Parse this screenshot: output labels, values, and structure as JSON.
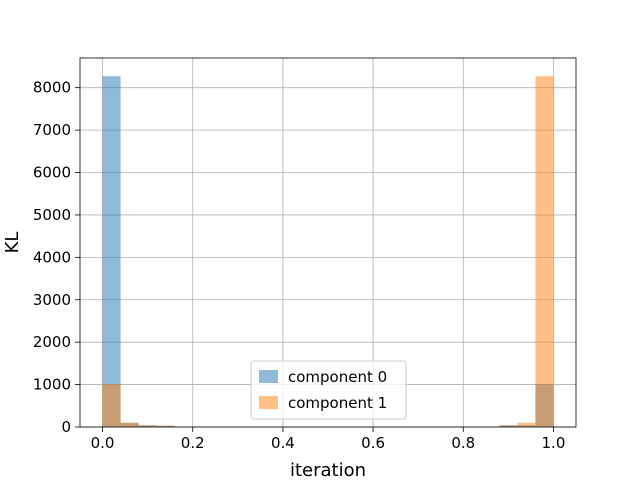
{
  "chart_data": {
    "type": "bar",
    "title": "",
    "xlabel": "iteration",
    "ylabel": "KL",
    "xlim": [
      -0.05,
      1.05
    ],
    "ylim": [
      0,
      8700
    ],
    "x_ticks": [
      0.0,
      0.2,
      0.4,
      0.6,
      0.8,
      1.0
    ],
    "x_tick_labels": [
      "0.0",
      "0.2",
      "0.4",
      "0.6",
      "0.8",
      "1.0"
    ],
    "y_ticks": [
      0,
      1000,
      2000,
      3000,
      4000,
      5000,
      6000,
      7000,
      8000
    ],
    "y_tick_labels": [
      "0",
      "1000",
      "2000",
      "3000",
      "4000",
      "5000",
      "6000",
      "7000",
      "8000"
    ],
    "grid": true,
    "legend_position": "bottom-center",
    "bin_edges": [
      0.0,
      0.04,
      0.08,
      0.12,
      0.16,
      0.2,
      0.24,
      0.28,
      0.32,
      0.36,
      0.4,
      0.44,
      0.48,
      0.52,
      0.56,
      0.6,
      0.64,
      0.68,
      0.72,
      0.76,
      0.8,
      0.84,
      0.88,
      0.92,
      0.96,
      1.0
    ],
    "series": [
      {
        "name": "component 0",
        "color": "#1f77b4",
        "values": [
          8270,
          100,
          40,
          30,
          10,
          10,
          10,
          10,
          10,
          10,
          10,
          10,
          10,
          10,
          10,
          10,
          10,
          10,
          10,
          10,
          10,
          10,
          40,
          40,
          1010
        ]
      },
      {
        "name": "component 1",
        "color": "#ff7f0e",
        "values": [
          1010,
          100,
          40,
          30,
          10,
          10,
          10,
          10,
          10,
          10,
          10,
          10,
          10,
          10,
          10,
          10,
          10,
          10,
          10,
          10,
          10,
          10,
          40,
          100,
          8270
        ]
      }
    ]
  }
}
